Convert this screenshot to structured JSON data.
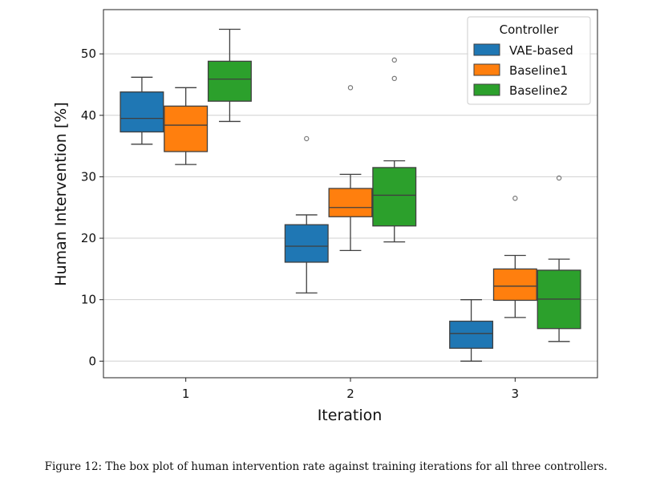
{
  "chart_data": {
    "type": "box",
    "title": "",
    "xlabel": "Iteration",
    "ylabel": "Human Intervention [%]",
    "categories": [
      "1",
      "2",
      "3"
    ],
    "ylim": [
      -2.7,
      57.2
    ],
    "yticks": [
      0,
      10,
      20,
      30,
      40,
      50
    ],
    "grid": "y",
    "legend": {
      "title": "Controller",
      "position": "top-right"
    },
    "series": [
      {
        "name": "VAE-based",
        "color": "#1f77b4",
        "boxes": [
          {
            "whislo": 35.3,
            "q1": 37.3,
            "med": 39.5,
            "q3": 43.8,
            "whishi": 46.2,
            "fliers": []
          },
          {
            "whislo": 11.1,
            "q1": 16.1,
            "med": 18.7,
            "q3": 22.2,
            "whishi": 23.8,
            "fliers": [
              36.2
            ]
          },
          {
            "whislo": 0.0,
            "q1": 2.1,
            "med": 4.5,
            "q3": 6.5,
            "whishi": 10.0,
            "fliers": []
          }
        ]
      },
      {
        "name": "Baseline1",
        "color": "#ff7f0e",
        "boxes": [
          {
            "whislo": 32.0,
            "q1": 34.1,
            "med": 38.4,
            "q3": 41.5,
            "whishi": 44.5,
            "fliers": []
          },
          {
            "whislo": 18.0,
            "q1": 23.5,
            "med": 25.0,
            "q3": 28.1,
            "whishi": 30.4,
            "fliers": [
              44.5
            ]
          },
          {
            "whislo": 7.1,
            "q1": 9.9,
            "med": 12.2,
            "q3": 15.0,
            "whishi": 17.2,
            "fliers": [
              26.5
            ]
          }
        ]
      },
      {
        "name": "Baseline2",
        "color": "#2ca02c",
        "boxes": [
          {
            "whislo": 39.0,
            "q1": 42.3,
            "med": 45.9,
            "q3": 48.8,
            "whishi": 54.0,
            "fliers": []
          },
          {
            "whislo": 19.4,
            "q1": 22.0,
            "med": 27.0,
            "q3": 31.5,
            "whishi": 32.6,
            "fliers": [
              46.0,
              49.0
            ]
          },
          {
            "whislo": 3.2,
            "q1": 5.3,
            "med": 10.1,
            "q3": 14.8,
            "whishi": 16.6,
            "fliers": [
              29.8
            ]
          }
        ]
      }
    ]
  },
  "caption": "Figure 12: The box plot of human intervention rate against training iterations for all three controllers."
}
